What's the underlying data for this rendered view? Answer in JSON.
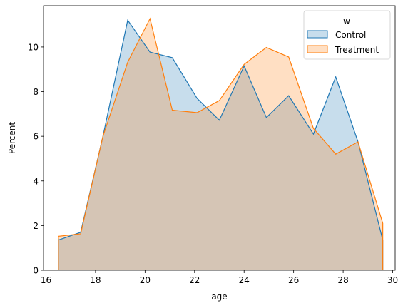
{
  "chart_data": {
    "type": "area",
    "xlabel": "age",
    "ylabel": "Percent",
    "xlim": [
      15.9,
      30.1
    ],
    "ylim": [
      0,
      11.85
    ],
    "x_ticks": [
      16,
      18,
      20,
      22,
      24,
      26,
      28,
      30
    ],
    "y_ticks": [
      0,
      2,
      4,
      6,
      8,
      10
    ],
    "grid": false,
    "legend": {
      "title": "w",
      "placement": "top-right"
    },
    "series": [
      {
        "name": "Control",
        "color": "#1f77b4",
        "fill": "rgba(31,119,180,0.25)",
        "x": [
          16.5,
          17.4,
          18.3,
          19.3,
          20.2,
          21.1,
          22.1,
          23.0,
          24.0,
          24.9,
          25.8,
          26.8,
          27.7,
          28.6,
          29.6
        ],
        "y": [
          1.35,
          1.7,
          6.0,
          11.2,
          9.77,
          9.52,
          7.7,
          6.72,
          9.15,
          6.84,
          7.82,
          6.1,
          8.66,
          5.75,
          1.35
        ]
      },
      {
        "name": "Treatment",
        "color": "#ff7f0e",
        "fill": "rgba(255,127,14,0.25)",
        "x": [
          16.5,
          17.4,
          18.3,
          19.3,
          20.2,
          21.1,
          22.1,
          23.0,
          24.0,
          24.9,
          25.8,
          26.8,
          27.7,
          28.6,
          29.6
        ],
        "y": [
          1.52,
          1.63,
          6.0,
          9.32,
          11.27,
          7.17,
          7.06,
          7.6,
          9.22,
          9.98,
          9.55,
          6.35,
          5.2,
          5.75,
          2.1
        ]
      }
    ]
  }
}
